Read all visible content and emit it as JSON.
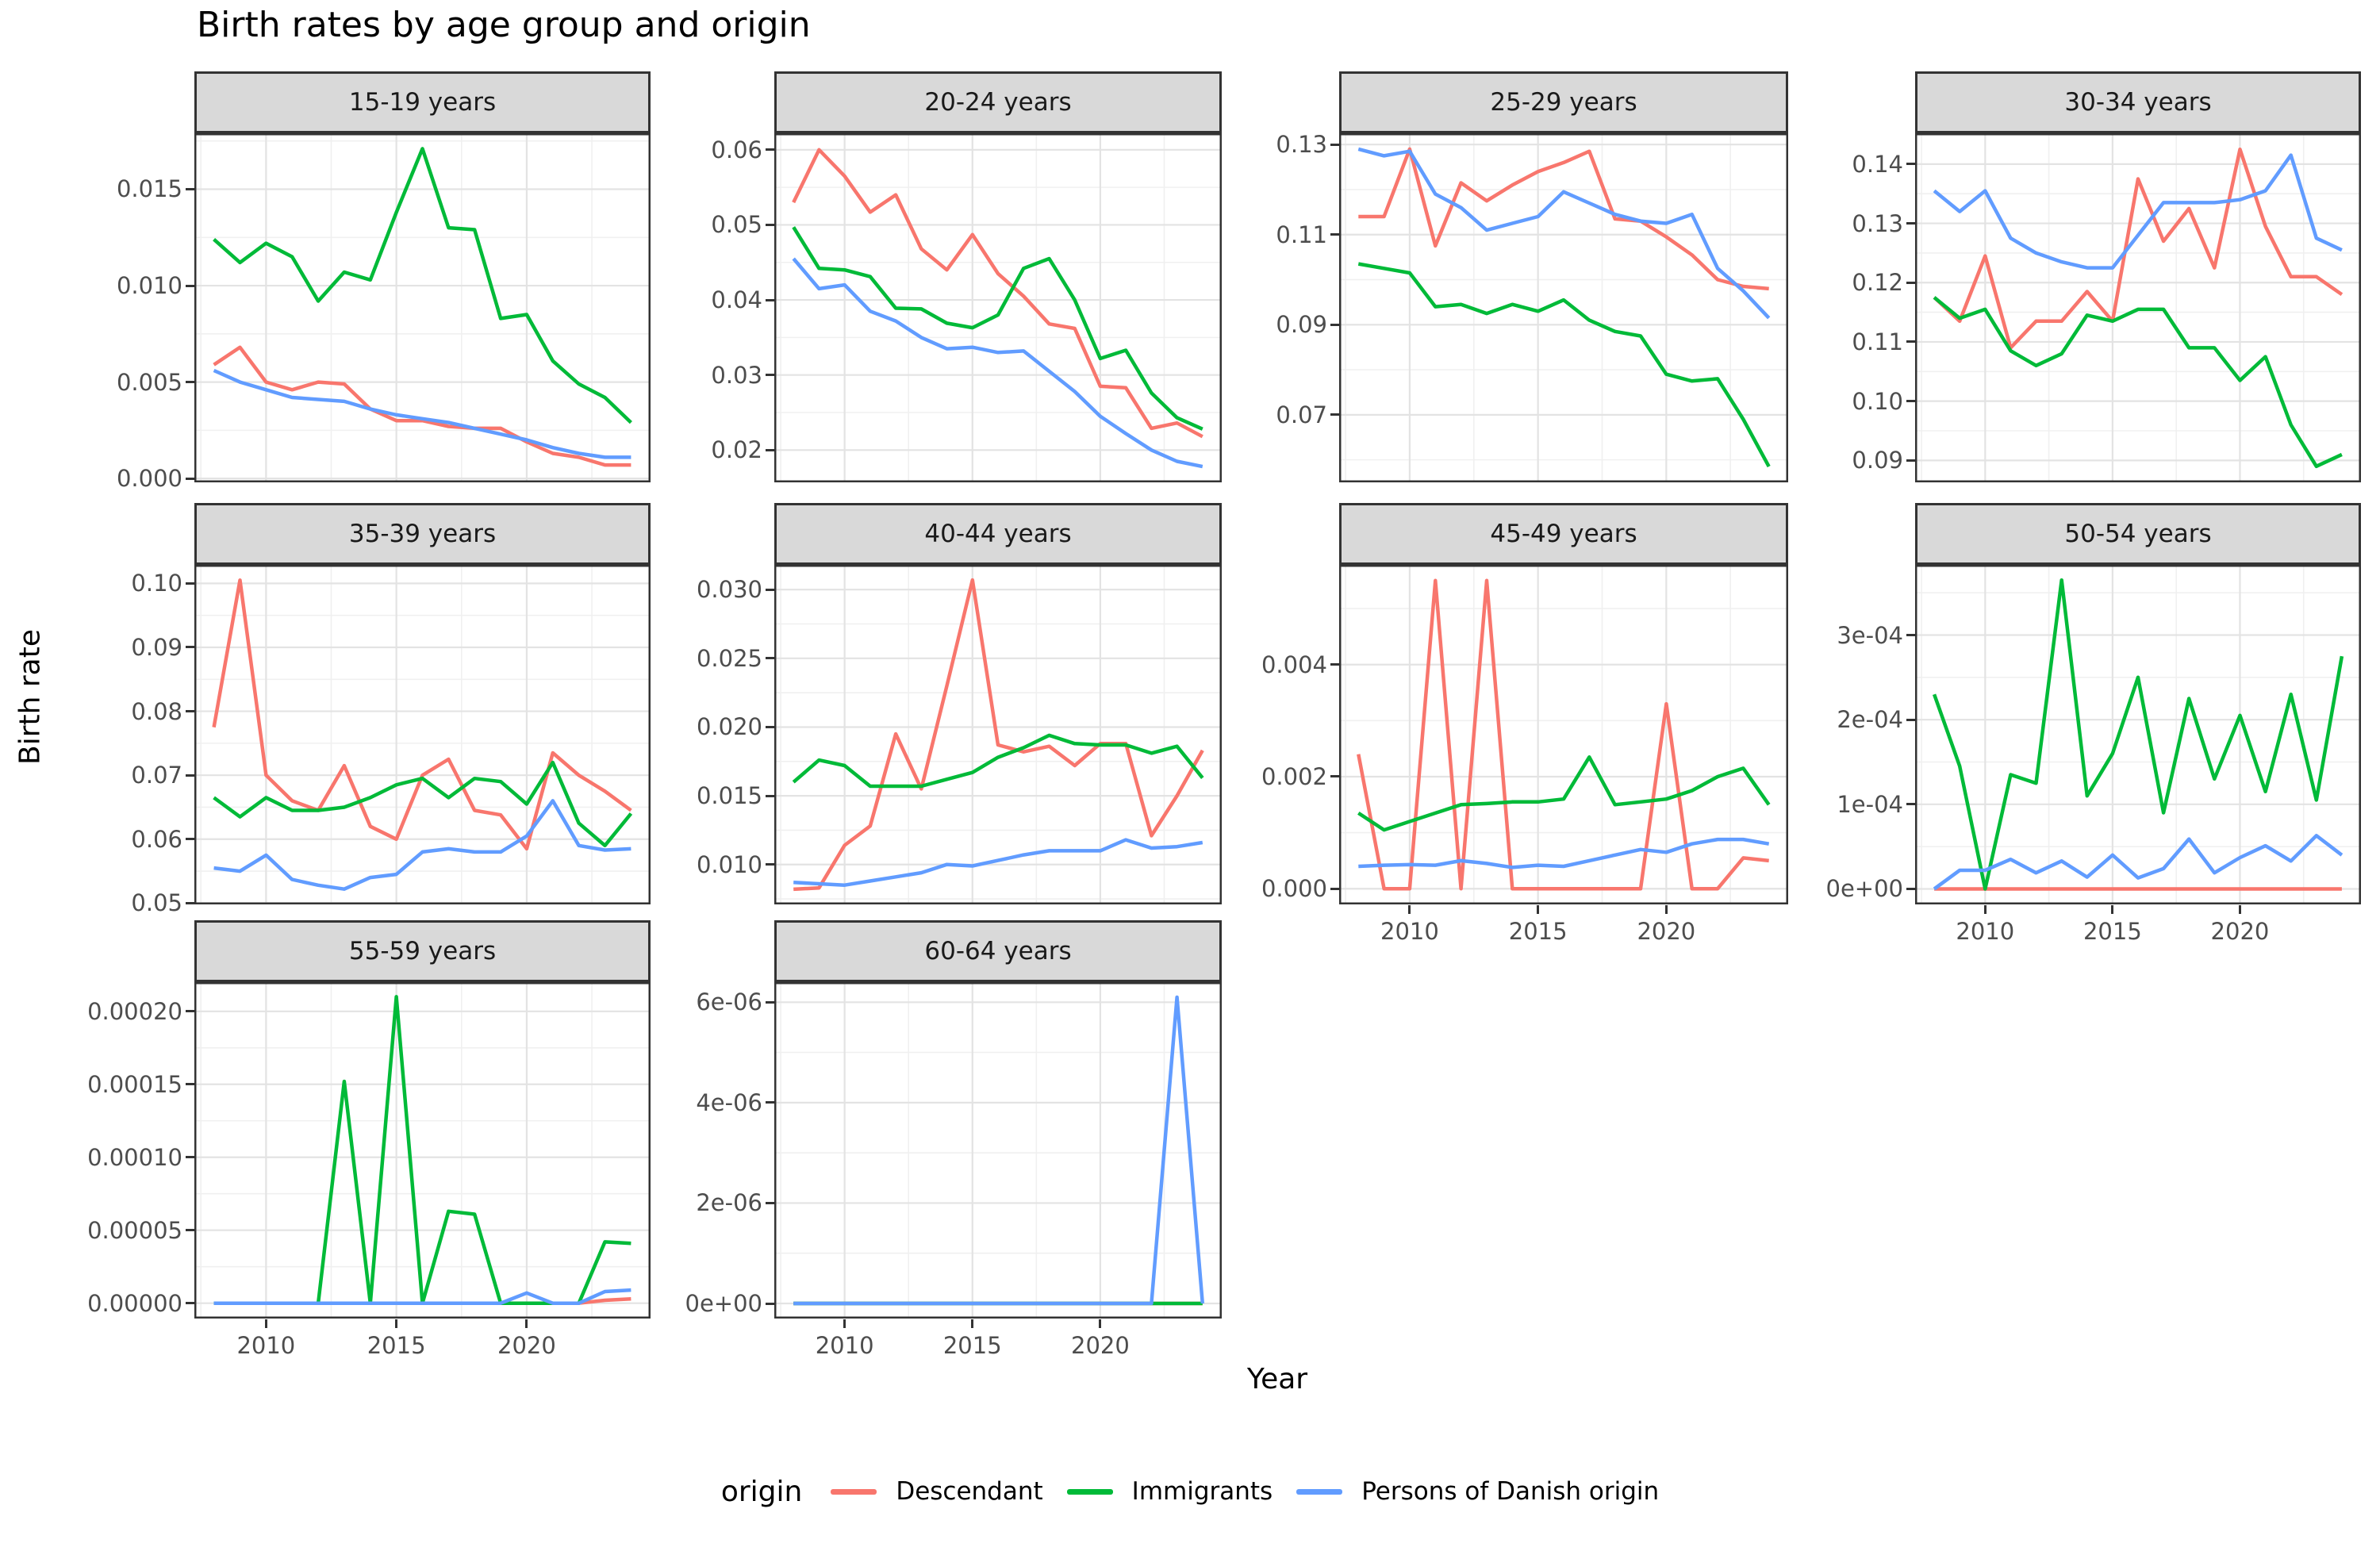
{
  "chart_data": {
    "type": "line",
    "title": "Birth rates by age group and origin",
    "xlabel": "Year",
    "ylabel": "Birth rate",
    "legend_title": "origin",
    "legend_position": "bottom",
    "grid": true,
    "x": [
      2008,
      2009,
      2010,
      2011,
      2012,
      2013,
      2014,
      2015,
      2016,
      2017,
      2018,
      2019,
      2020,
      2021,
      2022,
      2023,
      2024
    ],
    "x_ticks": [
      2010,
      2015,
      2020
    ],
    "x_tick_labels": [
      "2010",
      "2015",
      "2020"
    ],
    "series": [
      {
        "name": "Descendant",
        "color": "#F8766D"
      },
      {
        "name": "Immigrants",
        "color": "#00BA38"
      },
      {
        "name": "Persons of Danish origin",
        "color": "#619CFF"
      }
    ],
    "facets": [
      {
        "label": "15-19 years",
        "ylim": [
          -0.0002,
          0.0179
        ],
        "y_ticks": [
          0.0,
          0.005,
          0.01,
          0.015
        ],
        "y_tick_labels": [
          "0.000",
          "0.005",
          "0.010",
          "0.015"
        ],
        "values": {
          "Descendant": [
            0.0059,
            0.0068,
            0.005,
            0.0046,
            0.005,
            0.0049,
            0.0036,
            0.003,
            0.003,
            0.0027,
            0.0026,
            0.0026,
            0.0019,
            0.0013,
            0.0011,
            0.0007,
            0.0007
          ],
          "Immigrants": [
            0.0124,
            0.0112,
            0.0122,
            0.0115,
            0.0092,
            0.0107,
            0.0103,
            0.0138,
            0.0171,
            0.013,
            0.0129,
            0.0083,
            0.0085,
            0.0061,
            0.0049,
            0.0042,
            0.0029
          ],
          "Persons of Danish origin": [
            0.0056,
            0.005,
            0.0046,
            0.0042,
            0.0041,
            0.004,
            0.0036,
            0.0033,
            0.0031,
            0.0029,
            0.0026,
            0.0023,
            0.002,
            0.0016,
            0.0013,
            0.0011,
            0.0011
          ]
        }
      },
      {
        "label": "20-24 years",
        "ylim": [
          0.0157,
          0.0622
        ],
        "y_ticks": [
          0.02,
          0.03,
          0.04,
          0.05,
          0.06
        ],
        "y_tick_labels": [
          "0.02",
          "0.03",
          "0.04",
          "0.05",
          "0.06"
        ],
        "values": {
          "Descendant": [
            0.053,
            0.06,
            0.0565,
            0.0517,
            0.054,
            0.0468,
            0.044,
            0.0487,
            0.0435,
            0.0405,
            0.0368,
            0.0362,
            0.0285,
            0.0283,
            0.0229,
            0.0236,
            0.0218
          ],
          "Immigrants": [
            0.0497,
            0.0442,
            0.044,
            0.0431,
            0.0389,
            0.0388,
            0.0369,
            0.0363,
            0.038,
            0.0442,
            0.0455,
            0.04,
            0.0322,
            0.0333,
            0.0276,
            0.0243,
            0.0228
          ],
          "Persons of Danish origin": [
            0.0455,
            0.0415,
            0.042,
            0.0385,
            0.0372,
            0.035,
            0.0335,
            0.0337,
            0.033,
            0.0332,
            0.0305,
            0.0278,
            0.0245,
            0.0222,
            0.02,
            0.0185,
            0.0178
          ]
        }
      },
      {
        "label": "25-29 years",
        "ylim": [
          0.055,
          0.1325
        ],
        "y_ticks": [
          0.07,
          0.09,
          0.11,
          0.13
        ],
        "y_tick_labels": [
          "0.07",
          "0.09",
          "0.11",
          "0.13"
        ],
        "values": {
          "Descendant": [
            0.114,
            0.114,
            0.129,
            0.1075,
            0.1215,
            0.1175,
            0.121,
            0.124,
            0.126,
            0.1285,
            0.1135,
            0.113,
            0.1095,
            0.1055,
            0.1,
            0.0985,
            0.098
          ],
          "Immigrants": [
            0.1035,
            0.1025,
            0.1015,
            0.094,
            0.0945,
            0.0925,
            0.0945,
            0.093,
            0.0955,
            0.091,
            0.0885,
            0.0875,
            0.079,
            0.0775,
            0.078,
            0.069,
            0.0585
          ],
          "Persons of Danish origin": [
            0.129,
            0.1275,
            0.1285,
            0.119,
            0.116,
            0.111,
            0.1125,
            0.114,
            0.1195,
            0.117,
            0.1145,
            0.113,
            0.1125,
            0.1145,
            0.1025,
            0.0975,
            0.0915
          ]
        }
      },
      {
        "label": "30-34 years",
        "ylim": [
          0.0863,
          0.1452
        ],
        "y_ticks": [
          0.09,
          0.1,
          0.11,
          0.12,
          0.13,
          0.14
        ],
        "y_tick_labels": [
          "0.09",
          "0.10",
          "0.11",
          "0.12",
          "0.13",
          "0.14"
        ],
        "values": {
          "Descendant": [
            0.1175,
            0.1135,
            0.1245,
            0.109,
            0.1135,
            0.1135,
            0.1185,
            0.1135,
            0.1375,
            0.127,
            0.1325,
            0.1225,
            0.1425,
            0.1295,
            0.121,
            0.121,
            0.118
          ],
          "Immigrants": [
            0.1175,
            0.114,
            0.1155,
            0.1085,
            0.106,
            0.108,
            0.1145,
            0.1135,
            0.1155,
            0.1155,
            0.109,
            0.109,
            0.1035,
            0.1075,
            0.096,
            0.089,
            0.091
          ],
          "Persons of Danish origin": [
            0.1355,
            0.132,
            0.1355,
            0.1275,
            0.125,
            0.1235,
            0.1225,
            0.1225,
            0.128,
            0.1335,
            0.1335,
            0.1335,
            0.134,
            0.1355,
            0.1415,
            0.1275,
            0.1255
          ]
        }
      },
      {
        "label": "35-39 years",
        "ylim": [
          0.0498,
          0.1029
        ],
        "y_ticks": [
          0.05,
          0.06,
          0.07,
          0.08,
          0.09,
          0.1
        ],
        "y_tick_labels": [
          "0.05",
          "0.06",
          "0.07",
          "0.08",
          "0.09",
          "0.10"
        ],
        "values": {
          "Descendant": [
            0.0775,
            0.1005,
            0.07,
            0.066,
            0.0645,
            0.0715,
            0.062,
            0.06,
            0.07,
            0.0725,
            0.0645,
            0.0638,
            0.0585,
            0.0735,
            0.07,
            0.0675,
            0.0645
          ],
          "Immigrants": [
            0.0665,
            0.0635,
            0.0665,
            0.0645,
            0.0645,
            0.065,
            0.0665,
            0.0685,
            0.0695,
            0.0665,
            0.0695,
            0.069,
            0.0655,
            0.072,
            0.0625,
            0.059,
            0.064
          ],
          "Persons of Danish origin": [
            0.0555,
            0.055,
            0.0575,
            0.0537,
            0.0528,
            0.0522,
            0.054,
            0.0545,
            0.058,
            0.0585,
            0.058,
            0.058,
            0.0605,
            0.066,
            0.059,
            0.0583,
            0.0585
          ]
        }
      },
      {
        "label": "40-44 years",
        "ylim": [
          0.0071,
          0.0318
        ],
        "y_ticks": [
          0.01,
          0.015,
          0.02,
          0.025,
          0.03
        ],
        "y_tick_labels": [
          "0.010",
          "0.015",
          "0.020",
          "0.025",
          "0.030"
        ],
        "values": {
          "Descendant": [
            0.0082,
            0.0083,
            0.0114,
            0.0128,
            0.0195,
            0.0155,
            0.023,
            0.0307,
            0.0187,
            0.0182,
            0.0186,
            0.0172,
            0.0188,
            0.0188,
            0.0121,
            0.015,
            0.0183
          ],
          "Immigrants": [
            0.016,
            0.0176,
            0.0172,
            0.0157,
            0.0157,
            0.0157,
            0.0162,
            0.0167,
            0.0178,
            0.0185,
            0.0194,
            0.0188,
            0.0187,
            0.0187,
            0.0181,
            0.0186,
            0.0163
          ],
          "Persons of Danish origin": [
            0.0087,
            0.0086,
            0.0085,
            0.0088,
            0.0091,
            0.0094,
            0.01,
            0.0099,
            0.0103,
            0.0107,
            0.011,
            0.011,
            0.011,
            0.0118,
            0.0112,
            0.0113,
            0.0116
          ]
        }
      },
      {
        "label": "45-49 years",
        "ylim": [
          -0.00028,
          0.00578
        ],
        "y_ticks": [
          0.0,
          0.002,
          0.004
        ],
        "y_tick_labels": [
          "0.000",
          "0.002",
          "0.004"
        ],
        "values": {
          "Descendant": [
            0.0024,
            0,
            0,
            0.0055,
            0,
            0.0055,
            0,
            0,
            0,
            0,
            0,
            0,
            0.0033,
            0,
            0,
            0.00055,
            0.0005
          ],
          "Immigrants": [
            0.00135,
            0.00105,
            0.0012,
            0.00135,
            0.0015,
            0.00152,
            0.00155,
            0.00155,
            0.0016,
            0.00235,
            0.0015,
            0.00155,
            0.0016,
            0.00175,
            0.002,
            0.00215,
            0.0015
          ],
          "Persons of Danish origin": [
            0.0004,
            0.00042,
            0.00043,
            0.00042,
            0.0005,
            0.00045,
            0.00038,
            0.00042,
            0.0004,
            0.0005,
            0.0006,
            0.0007,
            0.00065,
            0.0008,
            0.00088,
            0.00088,
            0.0008
          ]
        }
      },
      {
        "label": "50-54 years",
        "ylim": [
          -1.83e-05,
          0.000383
        ],
        "y_ticks": [
          0,
          0.0001,
          0.0002,
          0.0003
        ],
        "y_tick_labels": [
          "0e+00",
          "1e-04",
          "2e-04",
          "3e-04"
        ],
        "values": {
          "Descendant": [
            0,
            0,
            0,
            0,
            0,
            0,
            0,
            0,
            0,
            0,
            0,
            0,
            0,
            0,
            0,
            0,
            0
          ],
          "Immigrants": [
            0.00023,
            0.000145,
            0,
            0.000135,
            0.000125,
            0.000365,
            0.00011,
            0.00016,
            0.00025,
            9e-05,
            0.000225,
            0.00013,
            0.000205,
            0.000115,
            0.00023,
            0.000105,
            0.000275
          ],
          "Persons of Danish origin": [
            0,
            2.2e-05,
            2.2e-05,
            3.5e-05,
            1.9e-05,
            3.3e-05,
            1.4e-05,
            4e-05,
            1.3e-05,
            2.4e-05,
            5.9e-05,
            1.9e-05,
            3.7e-05,
            5.1e-05,
            3.3e-05,
            6.3e-05,
            4e-05
          ]
        }
      },
      {
        "label": "55-59 years",
        "ylim": [
          -1.05e-05,
          0.00022
        ],
        "y_ticks": [
          0,
          5e-05,
          0.0001,
          0.00015,
          0.0002
        ],
        "y_tick_labels": [
          "0.00000",
          "0.00005",
          "0.00010",
          "0.00015",
          "0.00020"
        ],
        "values": {
          "Descendant": [
            0,
            0,
            0,
            0,
            0,
            0,
            0,
            0,
            0,
            0,
            0,
            0,
            0,
            0,
            0,
            2e-06,
            3e-06
          ],
          "Immigrants": [
            0,
            0,
            0,
            0,
            0,
            0.000152,
            0,
            0.00021,
            0,
            6.3e-05,
            6.1e-05,
            0,
            0,
            0,
            0,
            4.2e-05,
            4.1e-05
          ],
          "Persons of Danish origin": [
            0,
            0,
            0,
            0,
            0,
            0,
            0,
            0,
            0,
            0,
            0,
            0,
            7e-06,
            0,
            0,
            8e-06,
            9e-06
          ]
        }
      },
      {
        "label": "60-64 years",
        "ylim": [
          -3e-07,
          6.4e-06
        ],
        "y_ticks": [
          0,
          2e-06,
          4e-06,
          6e-06
        ],
        "y_tick_labels": [
          "0e+00",
          "2e-06",
          "4e-06",
          "6e-06"
        ],
        "values": {
          "Descendant": [
            0,
            0,
            0,
            0,
            0,
            0,
            0,
            0,
            0,
            0,
            0,
            0,
            0,
            0,
            0,
            0,
            0
          ],
          "Immigrants": [
            0,
            0,
            0,
            0,
            0,
            0,
            0,
            0,
            0,
            0,
            0,
            0,
            0,
            0,
            0,
            0,
            0
          ],
          "Persons of Danish origin": [
            0,
            0,
            0,
            0,
            0,
            0,
            0,
            0,
            0,
            0,
            0,
            0,
            0,
            0,
            0,
            6.1e-06,
            0
          ]
        }
      }
    ]
  }
}
